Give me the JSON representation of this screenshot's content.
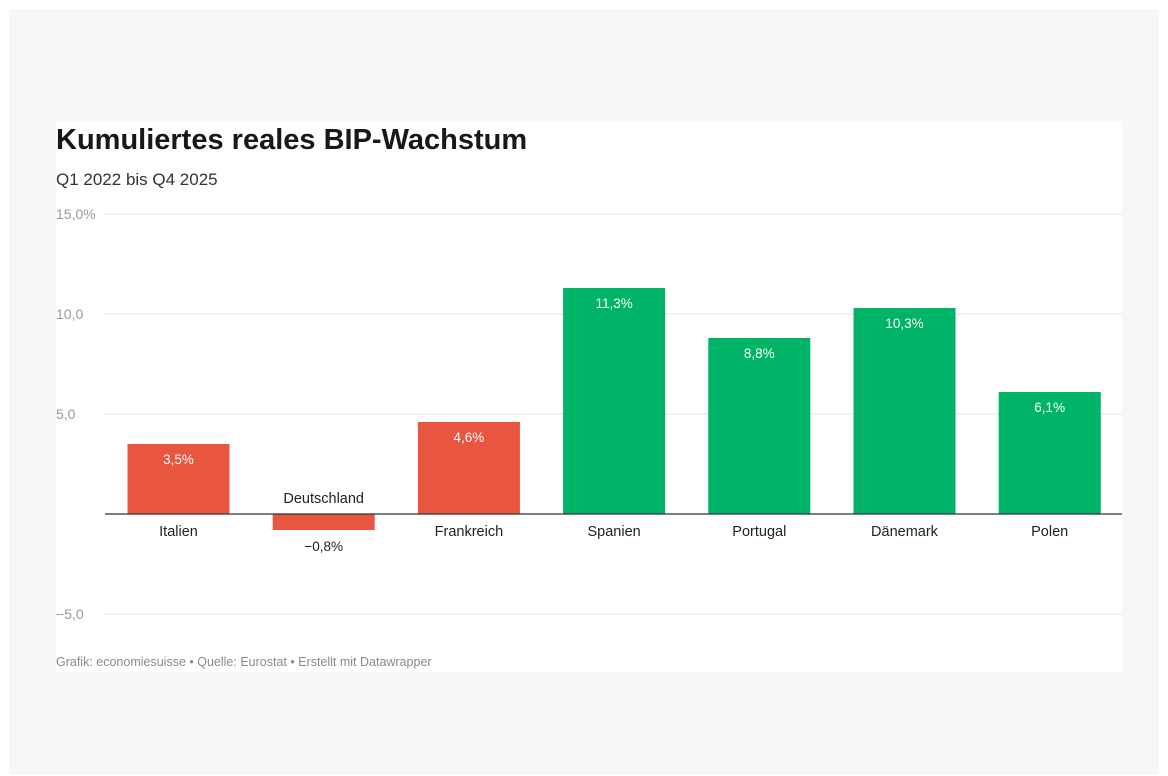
{
  "chart_data": {
    "type": "bar",
    "title": "Kumuliertes reales BIP-Wachstum",
    "subtitle": "Q1 2022 bis Q4 2025",
    "categories": [
      "Italien",
      "Deutschland",
      "Frankreich",
      "Spanien",
      "Portugal",
      "Dänemark",
      "Polen"
    ],
    "values": [
      3.5,
      -0.8,
      4.6,
      11.3,
      8.8,
      10.3,
      6.1
    ],
    "value_labels": [
      "3,5%",
      "−0,8%",
      "4,6%",
      "11,3%",
      "8,8%",
      "10,3%",
      "6,1%"
    ],
    "bar_colors": [
      "#e8563f",
      "#e8563f",
      "#e8563f",
      "#00b467",
      "#00b467",
      "#00b467",
      "#00b467"
    ],
    "ylim": [
      -5,
      15
    ],
    "yticks": [
      15,
      10,
      5,
      -5
    ],
    "ytick_labels": [
      "15,0%",
      "10,0",
      "5,0",
      "−5,0"
    ],
    "grid": true,
    "xlabel": "",
    "ylabel": ""
  },
  "footer": "Grafik: economiesuisse • Quelle: Eurostat • Erstellt mit Datawrapper"
}
